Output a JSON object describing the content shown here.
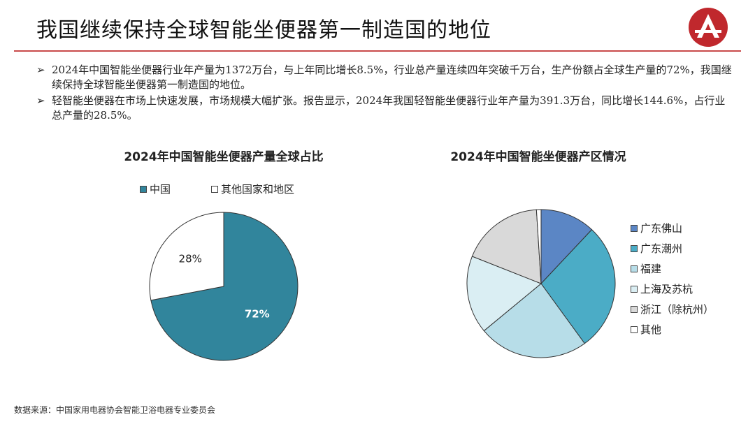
{
  "header": {
    "title": "我国继续保持全球智能坐便器第一制造国的地位"
  },
  "bullets": [
    {
      "marker": "➢",
      "text": "2024年中国智能坐便器行业年产量为1372万台，与上年同比增长8.5%，行业总产量连续四年突破千万台，生产份额占全球生产量的72%，我国继续保持全球智能坐便器第一制造国的地位。"
    },
    {
      "marker": "➢",
      "text": "轻智能坐便器在市场上快速发展，市场规模大幅扩张。报告显示，2024年我国轻智能坐便器行业年产量为391.3万台，同比增长144.6%，占行业总产量的28.5%。"
    }
  ],
  "chart_data": [
    {
      "type": "pie",
      "title": "2024年中国智能坐便器产量全球占比",
      "legend_position": "top",
      "categories": [
        "中国",
        "其他国家和地区"
      ],
      "values": [
        72,
        28
      ],
      "labels": [
        "72%",
        "28%"
      ],
      "colors": [
        "#31859c",
        "#ffffff"
      ],
      "label_colors": [
        "#ffffff",
        "#222222"
      ]
    },
    {
      "type": "pie",
      "title": "2024年中国智能坐便器产区情况",
      "legend_position": "right",
      "categories": [
        "广东佛山",
        "广东潮州",
        "福建",
        "上海及苏杭",
        "浙江（除杭州）",
        "其他"
      ],
      "values": [
        12,
        28,
        24,
        17,
        18,
        1
      ],
      "colors": [
        "#5b86c5",
        "#4bacc6",
        "#b7dde8",
        "#daeef3",
        "#d9d9d9",
        "#ffffff"
      ]
    }
  ],
  "footer": {
    "source": "数据来源：中国家用电器协会智能卫浴电器专业委员会"
  }
}
